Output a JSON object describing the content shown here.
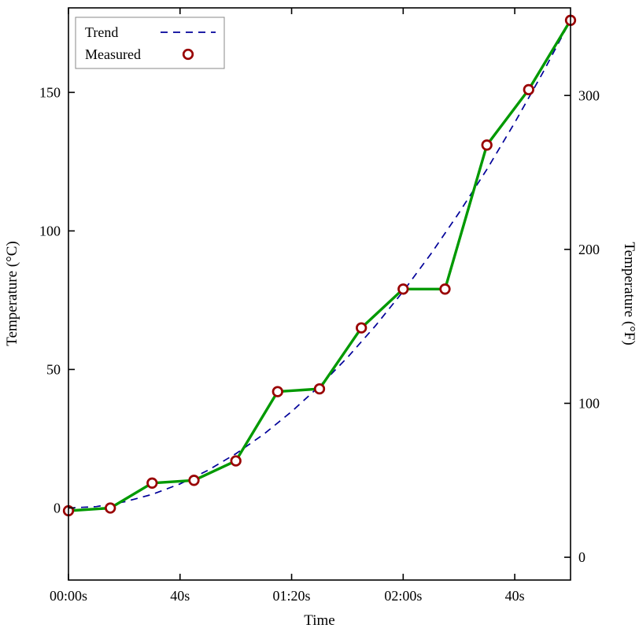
{
  "chart_data": {
    "type": "line",
    "title": "",
    "xlabel": "Time",
    "ylabel": "Temperature (°C)",
    "ylabel_right": "Temperature (°F)",
    "x_unit": "seconds",
    "xlim": [
      0,
      180
    ],
    "ylim_c": [
      -26,
      180.5
    ],
    "grid": false,
    "legend_position": "top-left",
    "x_ticks": [
      {
        "value": 0,
        "label": "00:00s"
      },
      {
        "value": 40,
        "label": "40s"
      },
      {
        "value": 80,
        "label": "01:20s"
      },
      {
        "value": 120,
        "label": "02:00s"
      },
      {
        "value": 160,
        "label": "40s"
      }
    ],
    "y_ticks_left_c": [
      0,
      50,
      100,
      150
    ],
    "y_ticks_right_f": [
      0,
      100,
      200,
      300
    ],
    "series": [
      {
        "name": "Trend",
        "style": "dashed",
        "color": "#000099",
        "x": [
          0,
          10,
          20,
          30,
          40,
          50,
          60,
          70,
          80,
          90,
          100,
          110,
          120,
          130,
          140,
          150,
          160,
          170,
          180
        ],
        "y": [
          0,
          0.5,
          2.2,
          4.9,
          8.7,
          13.6,
          19.6,
          26.6,
          34.8,
          44,
          54.3,
          65.7,
          78.2,
          91.8,
          106.5,
          122.2,
          139.1,
          157,
          176
        ]
      },
      {
        "name": "Measured",
        "style": "solid-with-markers",
        "line_color": "#009900",
        "marker": "open-circle",
        "marker_color": "#990000",
        "x": [
          0,
          15,
          30,
          45,
          60,
          75,
          90,
          105,
          120,
          135,
          150,
          165,
          180
        ],
        "y": [
          -1,
          0,
          9,
          10,
          17,
          42,
          43,
          65,
          79,
          79,
          131,
          151,
          176
        ]
      }
    ],
    "colors": {
      "axis": "#000000",
      "trend": "#000099",
      "measured_line": "#009900",
      "marker_stroke": "#990000",
      "legend_border": "#888888"
    }
  },
  "legend": {
    "items": [
      {
        "label": "Trend"
      },
      {
        "label": "Measured"
      }
    ]
  }
}
